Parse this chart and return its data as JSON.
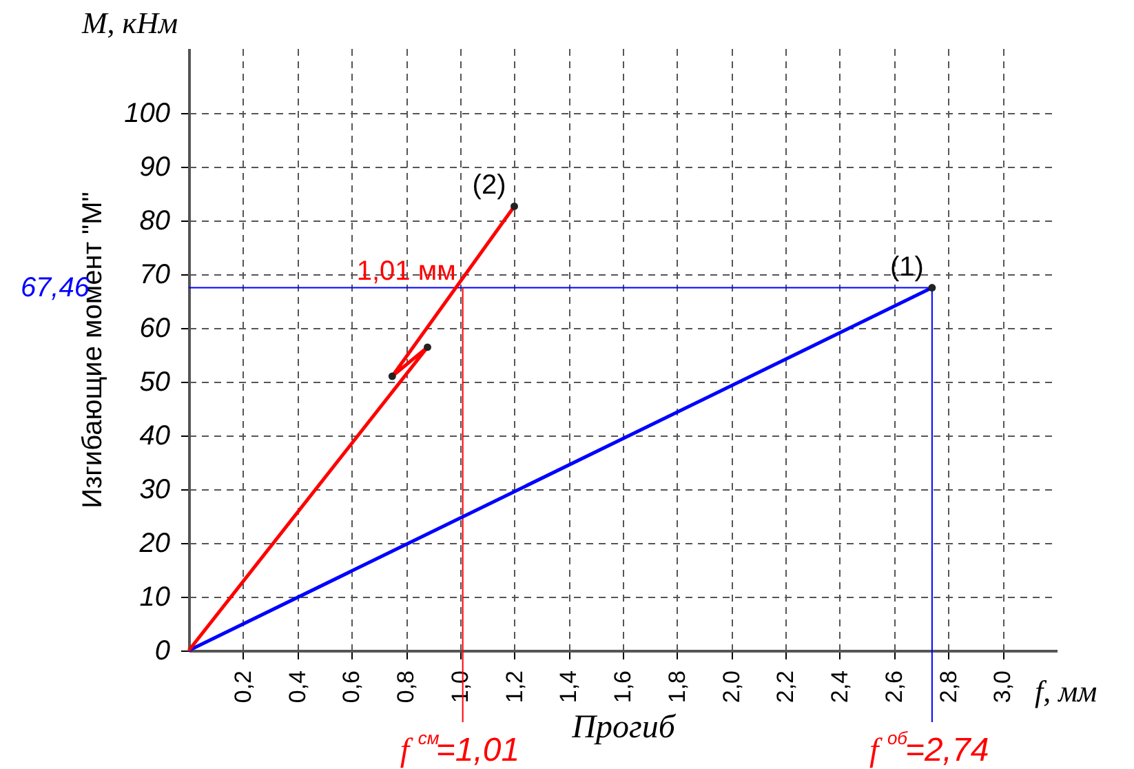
{
  "chart_data": {
    "type": "line",
    "xlabel": "Прогиб",
    "ylabel": "Изгибающие момент \"M\"",
    "series": [
      {
        "name": "(1)",
        "color": "#0000ff",
        "x": [
          0,
          2.74
        ],
        "values": [
          0,
          67.46
        ]
      },
      {
        "name": "(2)",
        "color": "#ff0000",
        "x": [
          0,
          0.88,
          0.75,
          1.2
        ],
        "values": [
          0,
          56.4,
          51,
          82.6
        ]
      }
    ],
    "xlim": [
      0,
      3.2
    ],
    "ylim": [
      0,
      112
    ],
    "xticks": [
      {
        "value": 0.2,
        "label": "0,2"
      },
      {
        "value": 0.4,
        "label": "0,4"
      },
      {
        "value": 0.6,
        "label": "0,6"
      },
      {
        "value": 0.8,
        "label": "0,8"
      },
      {
        "value": 1.0,
        "label": "1,0"
      },
      {
        "value": 1.2,
        "label": "1,2"
      },
      {
        "value": 1.4,
        "label": "1,4"
      },
      {
        "value": 1.6,
        "label": "1,6"
      },
      {
        "value": 1.8,
        "label": "1,8"
      },
      {
        "value": 2.0,
        "label": "2,0"
      },
      {
        "value": 2.2,
        "label": "2,2"
      },
      {
        "value": 2.4,
        "label": "2,4"
      },
      {
        "value": 2.6,
        "label": "2,6"
      },
      {
        "value": 2.8,
        "label": "2,8"
      },
      {
        "value": 3.0,
        "label": "3,0"
      }
    ],
    "yticks": [
      0,
      10,
      20,
      30,
      40,
      50,
      60,
      70,
      80,
      90,
      100
    ],
    "grid": true,
    "marker": "circle",
    "line_style": "solid",
    "legend": false,
    "ref_lines": [
      {
        "axis": "y",
        "value": 67.46,
        "label": "67,46",
        "color": "#0000ff"
      },
      {
        "axis": "x",
        "value": 1.01,
        "label": "f$^{см}$=1,01",
        "color": "#ff0000"
      },
      {
        "axis": "x",
        "value": 2.74,
        "label": "f$^{об}$=2,74",
        "color": "#0000ff"
      }
    ],
    "annotations": [
      "M, кНм",
      "f, мм",
      {
        "text": "1,01 мм",
        "x": 1.01,
        "y": 67.46
      }
    ]
  }
}
